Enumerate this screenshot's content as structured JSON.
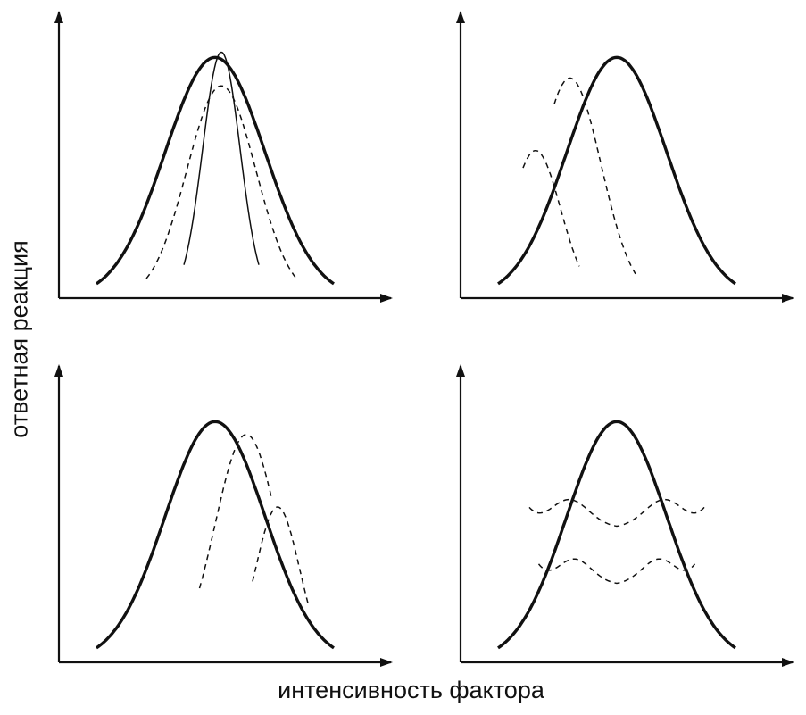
{
  "labels": {
    "y_axis": "ответная реакция",
    "x_axis": "интенсивность фактора"
  },
  "colors": {
    "stroke": "#111111",
    "background": "#ffffff"
  },
  "panels": [
    {
      "id": "top-left",
      "curves": [
        {
          "name": "main-optimum-curve",
          "style": "thick",
          "center": 0.5,
          "width": 0.16,
          "peak": 0.93,
          "base": [
            0.12,
            0.88
          ]
        },
        {
          "name": "dashed-medium-curve",
          "style": "dashed",
          "center": 0.52,
          "width": 0.11,
          "peak": 0.82,
          "base": [
            0.28,
            0.76
          ]
        },
        {
          "name": "thin-narrow-curve",
          "style": "thin",
          "center": 0.52,
          "width": 0.06,
          "peak": 0.95,
          "base": [
            0.4,
            0.64
          ]
        }
      ]
    },
    {
      "id": "top-right",
      "curves": [
        {
          "name": "main-optimum-curve",
          "style": "thick",
          "center": 0.5,
          "width": 0.16,
          "peak": 0.93,
          "base": [
            0.12,
            0.88
          ]
        },
        {
          "name": "dashed-shift-left-small",
          "style": "dashed",
          "center": 0.24,
          "width": 0.08,
          "peak": 0.57,
          "base": [
            0.2,
            0.38
          ]
        },
        {
          "name": "dashed-shift-left-large",
          "style": "dashed",
          "center": 0.35,
          "width": 0.1,
          "peak": 0.85,
          "base": [
            0.3,
            0.56
          ]
        }
      ]
    },
    {
      "id": "bottom-left",
      "curves": [
        {
          "name": "main-optimum-curve",
          "style": "thick",
          "center": 0.5,
          "width": 0.16,
          "peak": 0.93,
          "base": [
            0.12,
            0.88
          ]
        },
        {
          "name": "dashed-shift-right-large",
          "style": "dashed",
          "center": 0.6,
          "width": 0.1,
          "peak": 0.88,
          "base": [
            0.45,
            0.68
          ]
        },
        {
          "name": "dashed-shift-right-small",
          "style": "dashed",
          "center": 0.7,
          "width": 0.07,
          "peak": 0.6,
          "base": [
            0.62,
            0.8
          ]
        }
      ]
    },
    {
      "id": "bottom-right",
      "curves": [
        {
          "name": "main-optimum-curve",
          "style": "thick",
          "center": 0.5,
          "width": 0.16,
          "peak": 0.93,
          "base": [
            0.12,
            0.88
          ]
        },
        {
          "name": "dashed-bimodal-upper",
          "style": "dashed-bimodal",
          "level": 0.63,
          "dip": 0.52,
          "base": [
            0.22,
            0.78
          ]
        },
        {
          "name": "dashed-bimodal-lower",
          "style": "dashed-bimodal",
          "level": 0.4,
          "dip": 0.3,
          "base": [
            0.25,
            0.75
          ]
        }
      ]
    }
  ]
}
